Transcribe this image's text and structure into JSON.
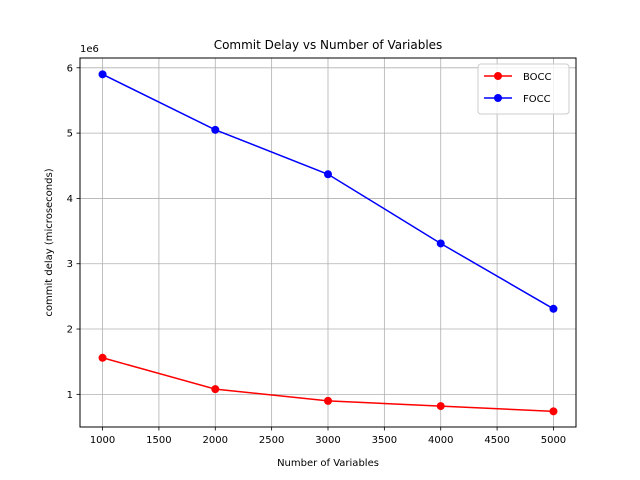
{
  "chart_data": {
    "type": "line",
    "title": "Commit Delay vs Number of Variables",
    "xlabel": "Number of Variables",
    "ylabel": "commit delay (microseconds)",
    "y_multiplier": "1e6",
    "x": [
      1000,
      2000,
      3000,
      4000,
      5000
    ],
    "xlim": [
      800,
      5200
    ],
    "ylim": [
      0.5,
      6.15
    ],
    "xticks": [
      1000,
      1500,
      2000,
      2500,
      3000,
      3500,
      4000,
      4500,
      5000
    ],
    "yticks": [
      1,
      2,
      3,
      4,
      5,
      6
    ],
    "grid": true,
    "legend_position": "top-right",
    "series": [
      {
        "name": "BOCC",
        "color": "#ff0000",
        "values": [
          1.56,
          1.08,
          0.9,
          0.82,
          0.74
        ]
      },
      {
        "name": "FOCC",
        "color": "#0000ff",
        "values": [
          5.9,
          5.05,
          4.37,
          3.31,
          2.31
        ]
      }
    ]
  }
}
